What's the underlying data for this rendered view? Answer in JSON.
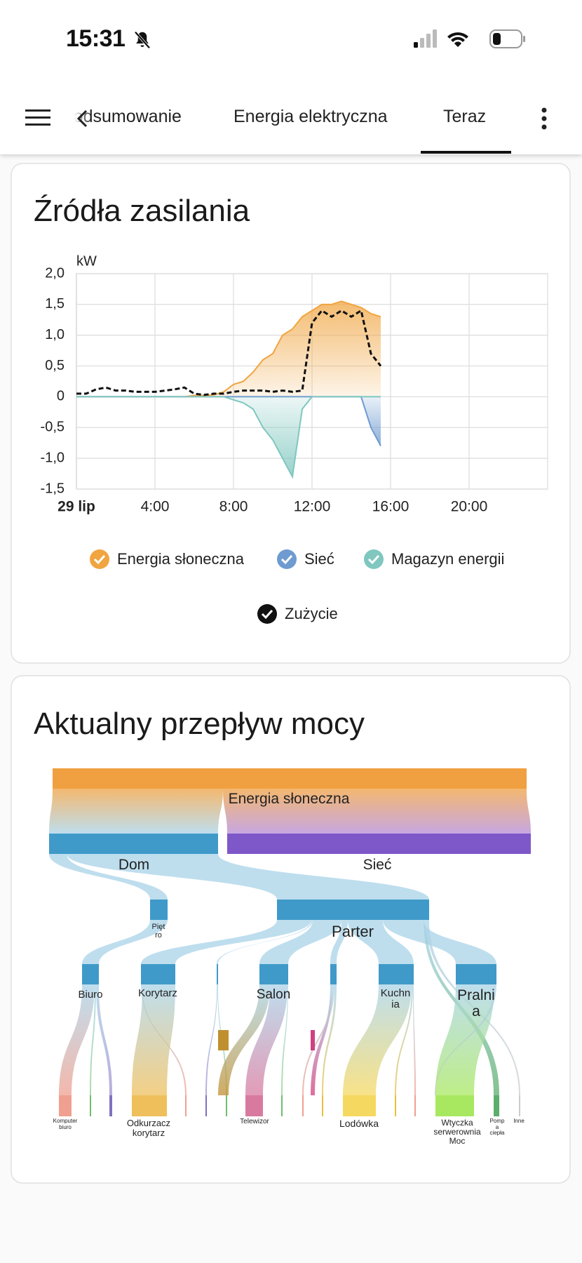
{
  "status_bar": {
    "time": "15:31"
  },
  "tabs": [
    "Podsumowanie",
    "Energia elektryczna",
    "Teraz"
  ],
  "chart_data": {
    "type": "area",
    "title": "Źródła zasilania",
    "y_unit": "kW",
    "xlim": [
      0,
      24
    ],
    "xticks": [
      {
        "value": 0,
        "label": "29 lip"
      },
      {
        "value": 4,
        "label": "4:00"
      },
      {
        "value": 8,
        "label": "8:00"
      },
      {
        "value": 12,
        "label": "12:00"
      },
      {
        "value": 16,
        "label": "16:00"
      },
      {
        "value": 20,
        "label": "20:00"
      }
    ],
    "ylim": [
      -1.5,
      2
    ],
    "yticks": [
      {
        "value": -1.5,
        "label": "-1,5"
      },
      {
        "value": -1,
        "label": "-1,0"
      },
      {
        "value": -0.5,
        "label": "-0,5"
      },
      0,
      {
        "value": 0.5,
        "label": "0,5"
      },
      {
        "value": 1,
        "label": "1,0"
      },
      {
        "value": 1.5,
        "label": "1,5"
      },
      {
        "value": 2,
        "label": "2,0"
      }
    ],
    "grid": true,
    "x": [
      0,
      0.5,
      1,
      1.5,
      2,
      2.5,
      3,
      3.5,
      4,
      4.5,
      5,
      5.5,
      6,
      6.5,
      7,
      7.5,
      8,
      8.5,
      9,
      9.5,
      10,
      10.5,
      11,
      11.5,
      12,
      12.5,
      13,
      13.5,
      14,
      14.5,
      15,
      15.5
    ],
    "series": [
      {
        "name": "Energia słoneczna",
        "color": "#f0a540",
        "values": [
          0,
          0,
          0,
          0,
          0,
          0,
          0,
          0,
          0,
          0,
          0,
          0,
          0.02,
          0.02,
          0.03,
          0.08,
          0.2,
          0.25,
          0.4,
          0.6,
          0.7,
          1.0,
          1.1,
          1.3,
          1.4,
          1.5,
          1.5,
          1.55,
          1.5,
          1.45,
          1.35,
          1.3
        ]
      },
      {
        "name": "Sieć",
        "color": "#6e9bd0",
        "values": [
          0,
          0,
          0,
          0,
          0,
          0,
          0,
          0,
          0,
          0,
          0,
          0,
          0,
          0,
          0,
          0,
          0,
          0,
          0,
          0,
          0,
          0,
          0,
          0,
          0,
          0,
          0,
          0,
          0,
          0,
          -0.5,
          -0.8
        ]
      },
      {
        "name": "Magazyn energii",
        "color": "#7fc7bf",
        "values": [
          0,
          0,
          0,
          0,
          0,
          0,
          0,
          0,
          0,
          0,
          0,
          0,
          0,
          0,
          0,
          0,
          -0.05,
          -0.1,
          -0.2,
          -0.5,
          -0.7,
          -1.0,
          -1.3,
          -0.2,
          0,
          0,
          0,
          0,
          0,
          0,
          0,
          0
        ]
      },
      {
        "name": "Zużycie",
        "color": "#111111",
        "values": [
          0.05,
          0.05,
          0.12,
          0.15,
          0.1,
          0.1,
          0.08,
          0.08,
          0.08,
          0.1,
          0.12,
          0.15,
          0.05,
          0.03,
          0.05,
          0.05,
          0.08,
          0.1,
          0.1,
          0.1,
          0.08,
          0.1,
          0.08,
          0.1,
          1.2,
          1.4,
          1.3,
          1.4,
          1.3,
          1.4,
          0.7,
          0.5
        ]
      }
    ]
  },
  "flow": {
    "title": "Aktualny przepływ mocy",
    "nodes": [
      "Energia słoneczna",
      "Dom",
      "Sieć",
      "Piętro",
      "Parter",
      "Biuro",
      "Korytarz",
      "Salon",
      "Kuchnia",
      "Pralnia",
      "Komputer biuro",
      "Odkurzacz korytarz",
      "Telewizor",
      "Lodówka",
      "Wtyczka serwerownia Moc",
      "Pompa ciepła",
      "Inne"
    ]
  }
}
